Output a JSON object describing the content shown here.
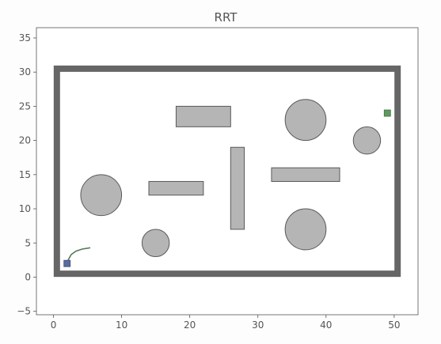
{
  "chart_data": {
    "type": "scatter",
    "title": "RRT",
    "xlabel": "",
    "ylabel": "",
    "xlim": [
      -2.5,
      53.5
    ],
    "ylim": [
      -5.5,
      36.5
    ],
    "x_ticks": [
      0,
      10,
      20,
      30,
      40,
      50
    ],
    "y_ticks": [
      -5,
      0,
      5,
      10,
      15,
      20,
      25,
      30,
      35
    ],
    "colors": {
      "wall": "#666666",
      "obstacle_fill": "#b5b5b5",
      "obstacle_edge": "#595959",
      "start": "#5b6b9e",
      "goal": "#5e9a5e",
      "path": "#557a55",
      "axis": "#555555"
    },
    "boundary": {
      "x_min": 0.5,
      "x_max": 50.5,
      "y_min": 0.5,
      "y_max": 30.5,
      "line": "wall"
    },
    "rect_obstacles": [
      {
        "x": 18,
        "y": 22,
        "w": 8,
        "h": 3
      },
      {
        "x": 14,
        "y": 12,
        "w": 8,
        "h": 2
      },
      {
        "x": 26,
        "y": 7,
        "w": 2,
        "h": 12
      },
      {
        "x": 32,
        "y": 14,
        "w": 10,
        "h": 2
      }
    ],
    "circle_obstacles": [
      {
        "cx": 37,
        "cy": 23,
        "r": 3
      },
      {
        "cx": 46,
        "cy": 20,
        "r": 2
      },
      {
        "cx": 7,
        "cy": 12,
        "r": 3
      },
      {
        "cx": 15,
        "cy": 5,
        "r": 2
      },
      {
        "cx": 37,
        "cy": 7,
        "r": 3
      }
    ],
    "start": {
      "x": 2,
      "y": 2
    },
    "goal": {
      "x": 49,
      "y": 24
    },
    "tree_path": [
      {
        "x": 2.2,
        "y": 2.6
      },
      {
        "x": 2.6,
        "y": 3.3
      },
      {
        "x": 3.3,
        "y": 3.8
      },
      {
        "x": 4.2,
        "y": 4.1
      },
      {
        "x": 5.4,
        "y": 4.3
      }
    ]
  }
}
